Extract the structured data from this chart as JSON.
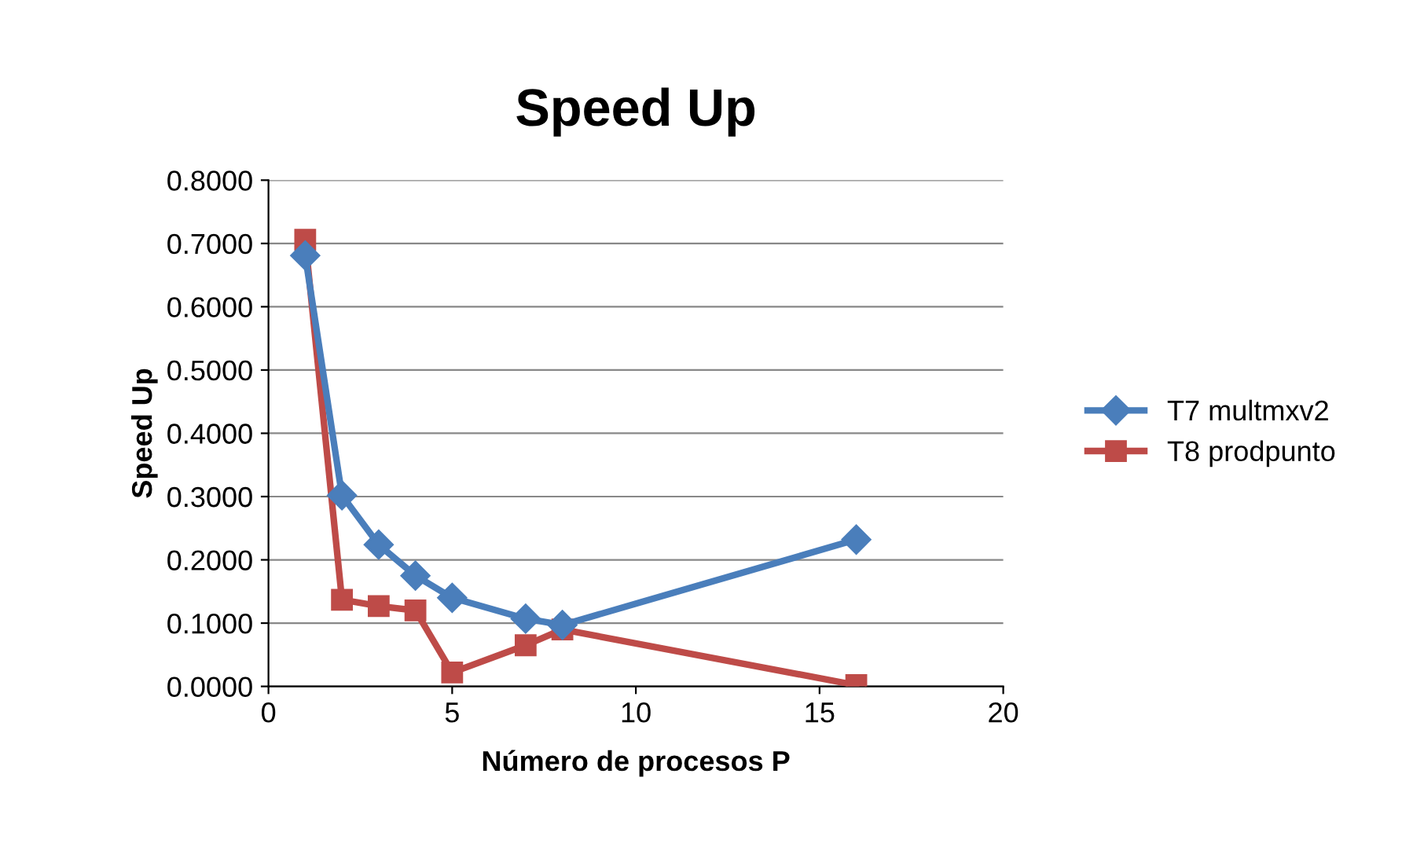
{
  "chart_data": {
    "type": "line",
    "title": "Speed Up",
    "xlabel": "Número de procesos P",
    "ylabel": "Speed Up",
    "x": [
      1,
      2,
      3,
      4,
      5,
      7,
      8,
      16
    ],
    "series": [
      {
        "name": "T7 multmxv2",
        "color": "#4a7ebb",
        "marker": "diamond",
        "values": [
          0.681,
          0.302,
          0.224,
          0.175,
          0.14,
          0.107,
          0.097,
          0.232
        ]
      },
      {
        "name": "T8 prodpunto",
        "color": "#be4b48",
        "marker": "square",
        "values": [
          0.706,
          0.137,
          0.127,
          0.12,
          0.022,
          0.065,
          0.09,
          0.002
        ]
      }
    ],
    "xlim": [
      0,
      20
    ],
    "xticks": [
      0,
      5,
      10,
      15,
      20
    ],
    "ylim": [
      0,
      0.8
    ],
    "yticks": [
      {
        "value": 0,
        "label": "0.0000"
      },
      {
        "value": 0.1,
        "label": "0.1000"
      },
      {
        "value": 0.2,
        "label": "0.2000"
      },
      {
        "value": 0.3,
        "label": "0.3000"
      },
      {
        "value": 0.4,
        "label": "0.4000"
      },
      {
        "value": 0.5,
        "label": "0.5000"
      },
      {
        "value": 0.6,
        "label": "0.6000"
      },
      {
        "value": 0.7,
        "label": "0.7000"
      },
      {
        "value": 0.8,
        "label": "0.8000"
      }
    ],
    "grid": "y",
    "legend": "right",
    "line_style": "solid"
  }
}
